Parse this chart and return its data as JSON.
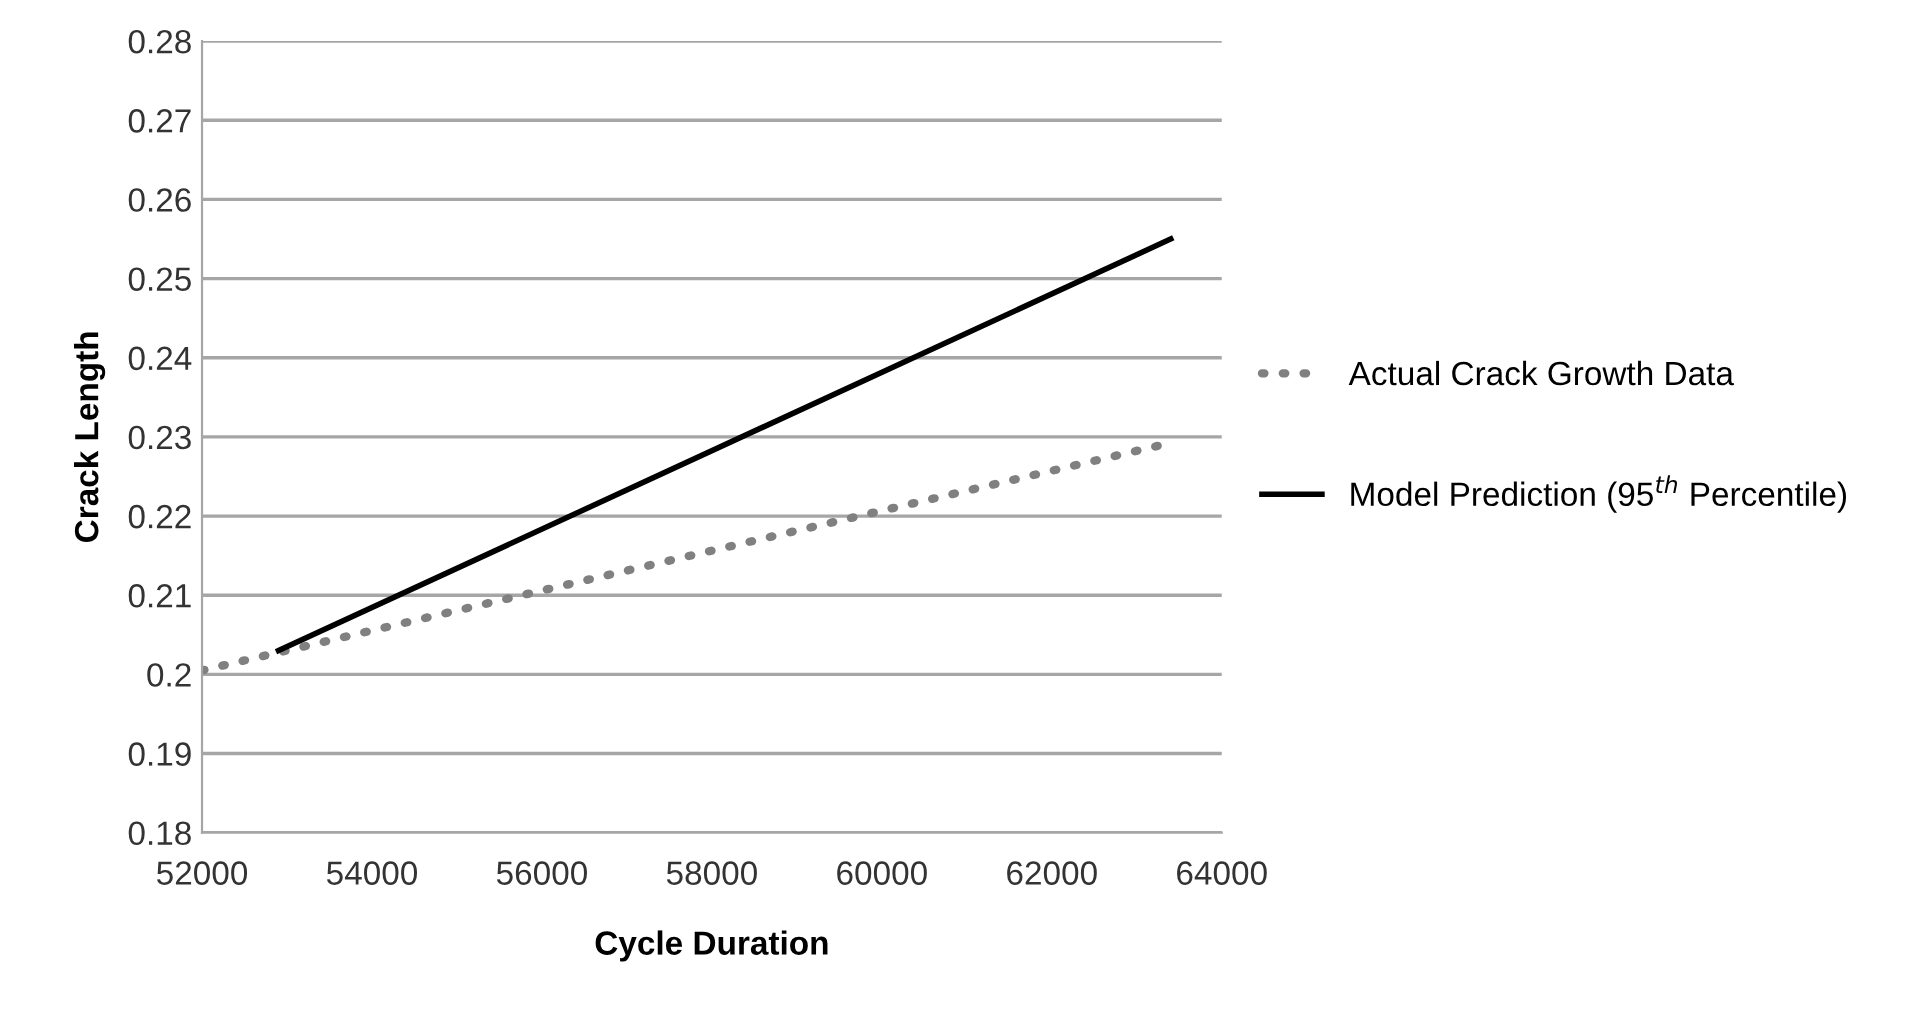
{
  "chart_data": {
    "type": "line",
    "xlabel": "Cycle Duration",
    "ylabel": "Crack Length",
    "xlim": [
      52000,
      64000
    ],
    "xticks": [
      52000,
      54000,
      56000,
      58000,
      60000,
      62000,
      64000
    ],
    "ylim": [
      0.18,
      0.28
    ],
    "yticks": [
      0.18,
      0.19,
      0.2,
      0.21,
      0.22,
      0.23,
      0.24,
      0.25,
      0.26,
      0.27,
      0.28
    ],
    "grid": "y",
    "legend": "right",
    "series": [
      {
        "name": "Actual Crack Growth Data",
        "color": "#808080",
        "line_style": "dotted",
        "x": [
          52000,
          63300
        ],
        "values": [
          0.2005,
          0.229
        ]
      },
      {
        "name": "Model Prediction (95$^{th}$ Percentile)",
        "color": "#000000",
        "line_style": "solid",
        "x": [
          52900,
          63400
        ],
        "values": [
          0.203,
          0.255
        ]
      }
    ]
  }
}
